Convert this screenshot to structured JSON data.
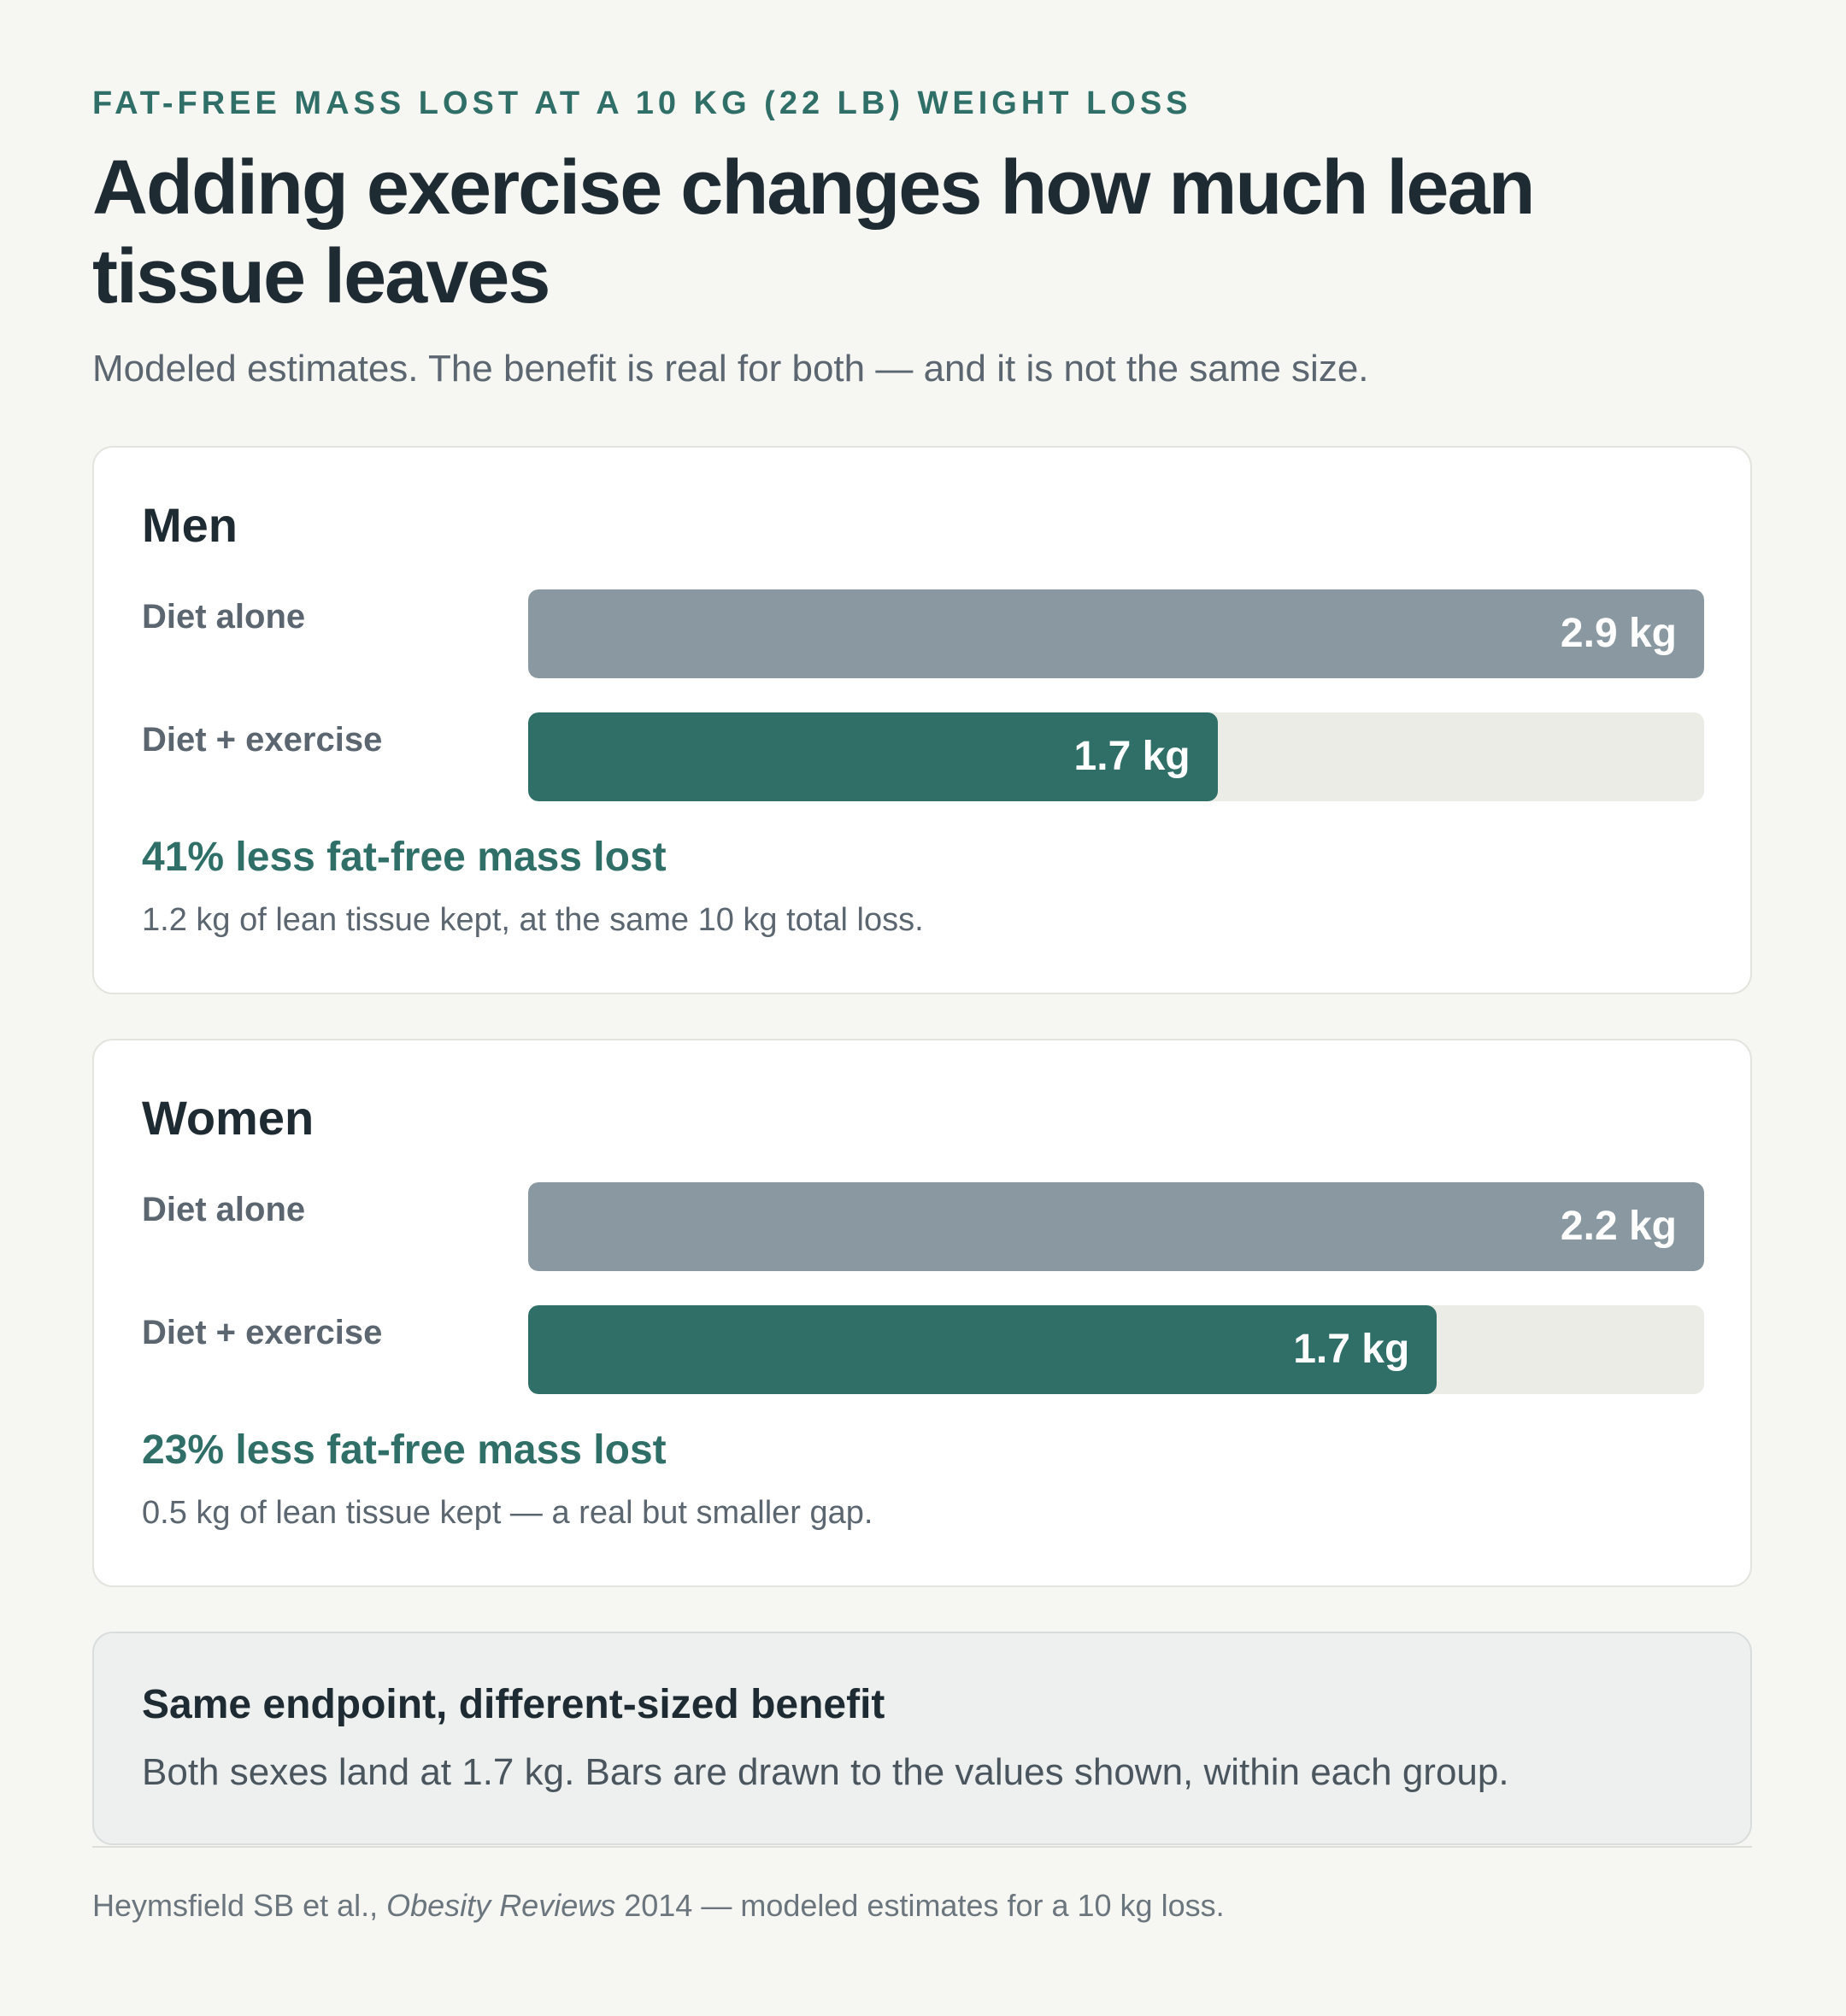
{
  "header": {
    "eyebrow": "FAT-FREE MASS LOST AT A 10 KG (22 LB) WEIGHT LOSS",
    "title": "Adding exercise changes how much lean tissue leaves",
    "subtitle": "Modeled estimates. The benefit is real for both — and it is not the same size."
  },
  "groups": [
    {
      "title": "Men",
      "rows": [
        {
          "label": "Diet alone",
          "value_label": "2.9 kg"
        },
        {
          "label": "Diet + exercise",
          "value_label": "1.7 kg"
        }
      ],
      "headline": "41% less fat-free mass lost",
      "detail": "1.2 kg of lean tissue kept, at the same 10 kg total loss."
    },
    {
      "title": "Women",
      "rows": [
        {
          "label": "Diet alone",
          "value_label": "2.2 kg"
        },
        {
          "label": "Diet + exercise",
          "value_label": "1.7 kg"
        }
      ],
      "headline": "23% less fat-free mass lost",
      "detail": "0.5 kg of lean tissue kept — a real but smaller gap."
    }
  ],
  "callout": {
    "title": "Same endpoint, different-sized benefit",
    "body": "Both sexes land at 1.7 kg. Bars are drawn to the values shown, within each group."
  },
  "source": {
    "authors": "Heymsfield SB et al., ",
    "journal": "Obesity Reviews",
    "rest": " 2014 — modeled estimates for a 10 kg loss."
  },
  "colors": {
    "accent": "#2f6f68",
    "diet_bar": "#8a99a1",
    "track": "#ebece6"
  },
  "chart_data": [
    {
      "type": "bar",
      "title": "Men",
      "categories": [
        "Diet alone",
        "Diet + exercise"
      ],
      "values": [
        2.9,
        1.7
      ],
      "unit": "kg",
      "scale": "within group, max = diet alone"
    },
    {
      "type": "bar",
      "title": "Women",
      "categories": [
        "Diet alone",
        "Diet + exercise"
      ],
      "values": [
        2.2,
        1.7
      ],
      "unit": "kg",
      "scale": "within group, max = diet alone"
    }
  ]
}
